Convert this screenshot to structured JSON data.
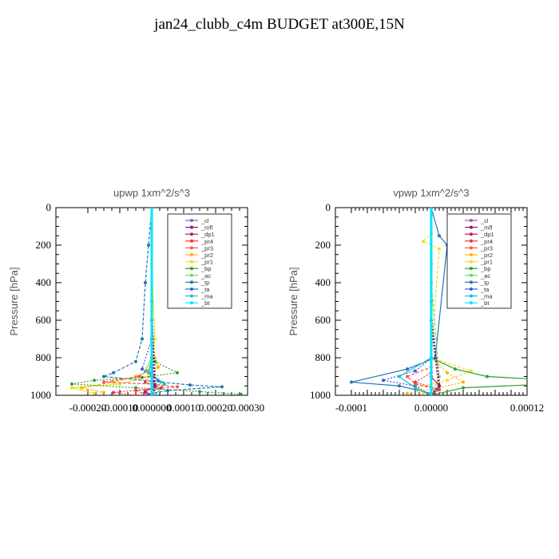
{
  "figure": {
    "title": "jan24_clubb_c4m  BUDGET at300E,15N"
  },
  "legend_items": [
    "_cl",
    "_mfl",
    "_dp1",
    "_pr4",
    "_pr3",
    "_pr2",
    "_pr1",
    "_bp",
    "_ac",
    "_tp",
    "_ta",
    "_ma",
    "_bt"
  ],
  "colors": {
    "_cl": "#9b59b6",
    "_mfl": "#7b1f7b",
    "_dp1": "#c2185b",
    "_pr4": "#e53935",
    "_pr3": "#ff5252",
    "_pr2": "#ffb300",
    "_pr1": "#f0e020",
    "_bp": "#2ca02c",
    "_ac": "#66dd66",
    "_tp": "#1f77b4",
    "_ta": "#3b5bdb",
    "_ma": "#17becf",
    "_bt": "#00e5ff"
  },
  "chart_data": [
    {
      "type": "line",
      "title": "upwp   1xm^2/s^3",
      "ylabel": "Pressure [hPa]",
      "xlim": [
        -0.0003,
        0.0003
      ],
      "ylim": [
        1000,
        0
      ],
      "xticks": [
        -0.0002,
        -0.0001,
        0.0,
        0.0001,
        0.0002,
        0.0003
      ],
      "xtick_labels": [
        "-0.00020",
        "-0.00010",
        "0.000000",
        "0.00010",
        "0.00020",
        "0.00030"
      ],
      "yticks": [
        0,
        200,
        400,
        600,
        800,
        1000
      ],
      "ytick_labels": [
        "0",
        "200",
        "400",
        "600",
        "800",
        "1000"
      ],
      "legend_position": "top-right",
      "series": [
        {
          "name": "_pr1",
          "x": [
            0.0,
            0.0,
            1e-05,
            0.0,
            2e-05,
            -1e-05,
            -0.0001,
            -0.00025,
            -0.00018
          ],
          "y": [
            0,
            300,
            700,
            800,
            850,
            900,
            940,
            960,
            990
          ]
        },
        {
          "name": "_pr2",
          "x": [
            0.0,
            0.0,
            1e-05,
            2e-05,
            -5e-05,
            -0.00012,
            -0.00022,
            -0.00015
          ],
          "y": [
            0,
            600,
            800,
            850,
            900,
            930,
            960,
            985
          ]
        },
        {
          "name": "_bp",
          "x": [
            0.0,
            0.0,
            1e-05,
            8e-05,
            -3e-05,
            -0.00018,
            -0.00025,
            -5e-05,
            0.00015,
            0.00028
          ],
          "y": [
            0,
            700,
            820,
            880,
            905,
            920,
            940,
            960,
            980,
            995
          ]
        },
        {
          "name": "_ac",
          "x": [
            0.0,
            0.0,
            -2e-05,
            3e-05,
            0.0
          ],
          "y": [
            0,
            800,
            870,
            930,
            1000
          ]
        },
        {
          "name": "_tp",
          "x": [
            0.0,
            -1e-05,
            -2e-05,
            -3e-05,
            -5e-05,
            -0.00012,
            -0.00015,
            0.0,
            0.00012,
            0.00022,
            5e-05,
            -2e-05
          ],
          "y": [
            0,
            200,
            400,
            700,
            820,
            880,
            900,
            925,
            945,
            955,
            975,
            995
          ]
        },
        {
          "name": "_ta",
          "x": [
            0.0,
            0.0,
            -3e-05,
            2e-05,
            -1e-05
          ],
          "y": [
            0,
            700,
            860,
            920,
            1000
          ]
        },
        {
          "name": "_ma",
          "x": [
            0.0,
            0.0,
            -1e-05,
            4e-05,
            1e-05
          ],
          "y": [
            0,
            800,
            880,
            940,
            1000
          ]
        },
        {
          "name": "_pr3",
          "x": [
            0.0,
            0.0,
            -4e-05,
            -0.00015,
            0.0,
            8e-05,
            -5e-05,
            -2e-05
          ],
          "y": [
            0,
            850,
            900,
            930,
            940,
            955,
            975,
            995
          ]
        },
        {
          "name": "_pr4",
          "x": [
            0.0,
            0.0,
            -2e-05,
            3e-05,
            -0.00012,
            -5e-05
          ],
          "y": [
            0,
            880,
            930,
            960,
            985,
            1000
          ]
        },
        {
          "name": "_dp1",
          "x": [
            0.0,
            0.0,
            1e-05,
            -2e-05,
            0.0
          ],
          "y": [
            0,
            900,
            950,
            980,
            1000
          ]
        },
        {
          "name": "_cl",
          "x": [
            0.0,
            0.0,
            0.0
          ],
          "y": [
            0,
            500,
            1000
          ]
        },
        {
          "name": "_mfl",
          "x": [
            0.0,
            0.0,
            1e-05,
            0.0
          ],
          "y": [
            0,
            600,
            950,
            1000
          ]
        },
        {
          "name": "_bt",
          "x": [
            0.0,
            0.0
          ],
          "y": [
            0,
            1000
          ]
        }
      ]
    },
    {
      "type": "line",
      "title": "vpwp   1xm^2/s^3",
      "ylabel": "Pressure [hPa]",
      "xlim": [
        -0.00012,
        0.00012
      ],
      "ylim": [
        1000,
        0
      ],
      "xticks": [
        -0.0001,
        -8e-05,
        -6e-05,
        -4e-05,
        -2e-05,
        0.0,
        2e-05,
        4e-05,
        6e-05,
        8e-05,
        0.0001,
        0.00012
      ],
      "xtick_labels": [
        "-0.0001",
        "",
        "",
        "",
        "",
        "0.00000",
        "",
        "",
        "",
        "",
        "",
        "0.00012"
      ],
      "yticks": [
        0,
        200,
        400,
        600,
        800,
        1000
      ],
      "ytick_labels": [
        "0",
        "200",
        "400",
        "600",
        "800",
        "1000"
      ],
      "legend_position": "top-right",
      "series": [
        {
          "name": "_tp",
          "x": [
            0.0,
            1e-05,
            2e-05,
            5e-06,
            -3e-05,
            -0.0001,
            -4e-05,
            0.0
          ],
          "y": [
            0,
            150,
            200,
            800,
            860,
            930,
            950,
            990
          ]
        },
        {
          "name": "_pr1",
          "x": [
            0.0,
            0.0,
            -1e-05,
            1e-05,
            0.0,
            5e-05,
            2e-05,
            -2e-05,
            -1e-05
          ],
          "y": [
            0,
            140,
            180,
            220,
            800,
            870,
            920,
            960,
            990
          ]
        },
        {
          "name": "_pr2",
          "x": [
            0.0,
            0.0,
            2e-05,
            4e-05,
            1e-05,
            -3e-05
          ],
          "y": [
            0,
            800,
            880,
            930,
            960,
            990
          ]
        },
        {
          "name": "_bp",
          "x": [
            0.0,
            0.0,
            3e-05,
            7e-05,
            0.0002,
            4e-05,
            0.0
          ],
          "y": [
            0,
            800,
            860,
            900,
            930,
            960,
            1000
          ]
        },
        {
          "name": "_ac",
          "x": [
            0.0,
            0.0,
            0.0,
            1e-05,
            0.0
          ],
          "y": [
            0,
            300,
            400,
            900,
            1000
          ]
        },
        {
          "name": "_ta",
          "x": [
            0.0,
            0.0,
            -2e-05,
            -6e-05,
            -2e-05,
            0.0
          ],
          "y": [
            0,
            800,
            870,
            920,
            950,
            1000
          ]
        },
        {
          "name": "_ma",
          "x": [
            0.0,
            0.0,
            -4e-05,
            -2e-05,
            0.0
          ],
          "y": [
            0,
            800,
            900,
            960,
            1000
          ]
        },
        {
          "name": "_pr3",
          "x": [
            0.0,
            0.0,
            -3e-05,
            -2e-05,
            1e-05,
            0.0
          ],
          "y": [
            0,
            850,
            900,
            940,
            970,
            1000
          ]
        },
        {
          "name": "_pr4",
          "x": [
            0.0,
            0.0,
            -2e-05,
            1e-05,
            0.0
          ],
          "y": [
            0,
            880,
            930,
            970,
            1000
          ]
        },
        {
          "name": "_dp1",
          "x": [
            0.0,
            0.0,
            1e-05,
            0.0
          ],
          "y": [
            0,
            900,
            950,
            1000
          ]
        },
        {
          "name": "_cl",
          "x": [
            0.0,
            0.0,
            0.0
          ],
          "y": [
            0,
            500,
            1000
          ]
        },
        {
          "name": "_mfl",
          "x": [
            0.0,
            0.0,
            1e-05,
            0.0
          ],
          "y": [
            0,
            600,
            950,
            1000
          ]
        },
        {
          "name": "_bt",
          "x": [
            0.0,
            0.0
          ],
          "y": [
            0,
            1000
          ]
        }
      ]
    }
  ]
}
